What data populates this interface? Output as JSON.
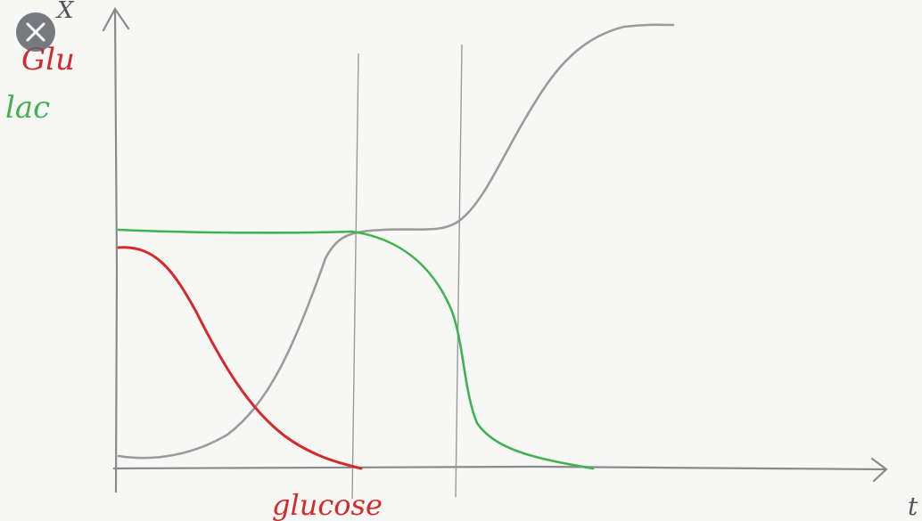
{
  "axis": {
    "y_label": "X",
    "x_label": "t"
  },
  "legend": {
    "glu": "Glu",
    "lac": "lac"
  },
  "annotation": "glucose"
}
